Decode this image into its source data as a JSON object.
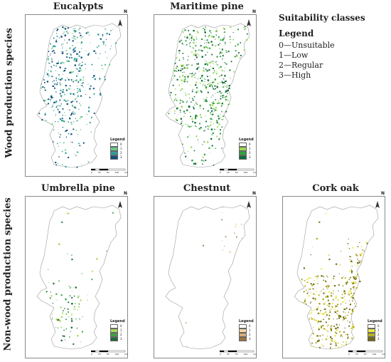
{
  "row_labels": {
    "wood": "Wood production species",
    "nonwood": "Non-wood production species"
  },
  "info": {
    "heading": "Suitability classes",
    "legend_title": "Legend",
    "classes": [
      "0—Unsuitable",
      "1—Low",
      "2—Regular",
      "3—High"
    ]
  },
  "panels": [
    {
      "title": "Eucalypts",
      "legend_title": "Legend",
      "legend_items": [
        "0",
        "1",
        "2",
        "3"
      ],
      "colors": [
        "#ffffff",
        "#66cc88",
        "#2e9e9a",
        "#124f7c"
      ],
      "density": 0.85,
      "focus": "north-coast"
    },
    {
      "title": "Maritime pine",
      "legend_title": "Legend",
      "legend_items": [
        "0",
        "1",
        "2",
        "3"
      ],
      "colors": [
        "#ffffff",
        "#9bd94f",
        "#2fa33a",
        "#0e6b3a"
      ],
      "density": 0.8,
      "focus": "center"
    },
    {
      "title": "Umbrella pine",
      "legend_title": "Legend",
      "legend_items": [
        "0",
        "1",
        "2",
        "3"
      ],
      "colors": [
        "#ffffff",
        "#a6d95a",
        "#3fa044",
        "#1d6b3a"
      ],
      "density": 0.3,
      "focus": "south-west"
    },
    {
      "title": "Chestnut",
      "legend_title": "Legend",
      "legend_items": [
        "0",
        "1",
        "2",
        "3"
      ],
      "colors": [
        "#ffffff",
        "#f5d6a8",
        "#d6ad78",
        "#9a7440"
      ],
      "density": 0.1,
      "focus": "north-east"
    },
    {
      "title": "Cork oak",
      "legend_title": "Legend",
      "legend_items": [
        "0",
        "1",
        "2",
        "3"
      ],
      "colors": [
        "#ffffff",
        "#e8e84a",
        "#b8b020",
        "#6f6a10"
      ],
      "density": 0.85,
      "focus": "south"
    }
  ],
  "north_label": "N",
  "scale_labels": [
    "0",
    "25",
    "50",
    "100",
    "km"
  ]
}
